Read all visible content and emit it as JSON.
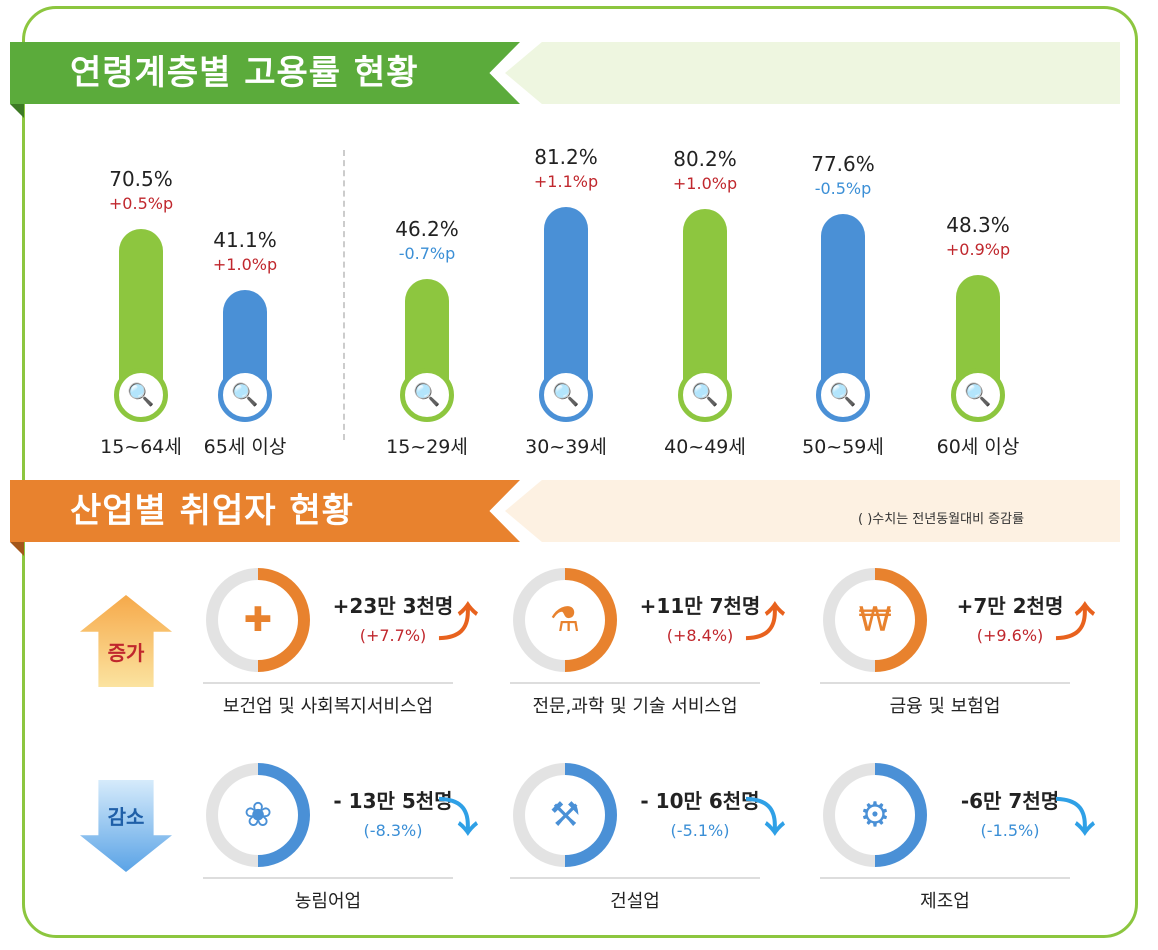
{
  "section1": {
    "title": "연령계층별 고용률 현황"
  },
  "section2": {
    "title": "산업별 취업자 현황",
    "note": "( )수치는 전년동월대비 증감률",
    "increase_label": "증가",
    "decrease_label": "감소"
  },
  "colors": {
    "green": "#8dc63f",
    "blue": "#4a90d6",
    "orange": "#e8822e",
    "up": "#c0272d",
    "down": "#3b8fd6"
  },
  "chart_data": {
    "type": "bar",
    "categories": [
      "15~64세",
      "65세 이상",
      "15~29세",
      "30~39세",
      "40~49세",
      "50~59세",
      "60세 이상"
    ],
    "values": [
      70.5,
      41.1,
      46.2,
      81.2,
      80.2,
      77.6,
      48.3
    ],
    "value_labels": [
      "70.5%",
      "41.1%",
      "46.2%",
      "81.2%",
      "80.2%",
      "77.6%",
      "48.3%"
    ],
    "changes": [
      "+0.5%p",
      "+1.0%p",
      "-0.7%p",
      "+1.1%p",
      "+1.0%p",
      "-0.5%p",
      "+0.9%p"
    ],
    "bar_colors": [
      "green",
      "blue",
      "green",
      "blue",
      "green",
      "blue",
      "green"
    ],
    "icon": "document-search-icon"
  },
  "industries": [
    {
      "name": "보건업 및 사회복지서비스업",
      "change": "+23만 3천명",
      "pct": "(+7.7%)",
      "dir": "up",
      "icon": "medical-kit-icon"
    },
    {
      "name": "전문,과학 및 기술 서비스업",
      "change": "+11만 7천명",
      "pct": "(+8.4%)",
      "dir": "up",
      "icon": "flask-icon"
    },
    {
      "name": "금융 및 보험업",
      "change": "+7만 2천명",
      "pct": "(+9.6%)",
      "dir": "up",
      "icon": "laptop-won-icon"
    },
    {
      "name": "농림어업",
      "change": "- 13만 5천명",
      "pct": "(-8.3%)",
      "dir": "down",
      "icon": "wheat-icon"
    },
    {
      "name": "건설업",
      "change": "- 10만 6천명",
      "pct": "(-5.1%)",
      "dir": "down",
      "icon": "excavator-icon"
    },
    {
      "name": "제조업",
      "change": "-6만 7천명",
      "pct": "(-1.5%)",
      "dir": "down",
      "icon": "gears-icon"
    }
  ]
}
